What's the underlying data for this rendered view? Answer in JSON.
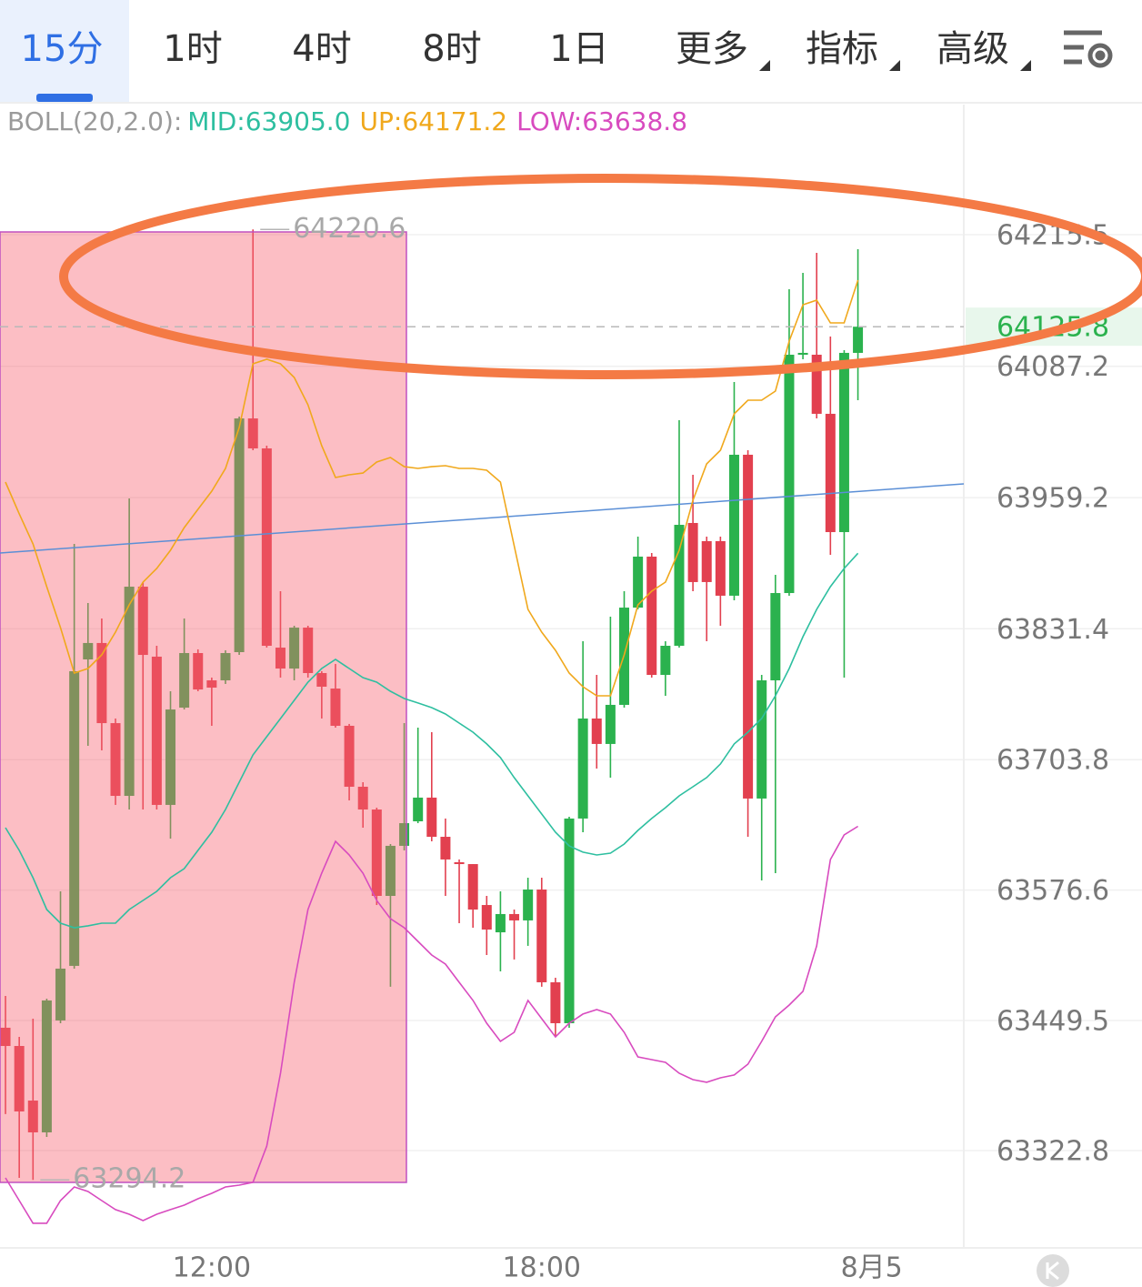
{
  "toolbar": {
    "tabs": [
      {
        "label": "15分"
      },
      {
        "label": "1时"
      },
      {
        "label": "4时"
      },
      {
        "label": "8时"
      },
      {
        "label": "1日"
      },
      {
        "label": "更多",
        "dropdown": true
      },
      {
        "label": "指标",
        "dropdown": true
      },
      {
        "label": "高级",
        "dropdown": true
      }
    ],
    "active": 0
  },
  "chart_data": {
    "type": "candlestick",
    "indicator_label": "BOLL(20,2.0):",
    "x": [
      0,
      1,
      2,
      3,
      4,
      5,
      6,
      7,
      8,
      9,
      10,
      11,
      12,
      13,
      14,
      15,
      16,
      17,
      18,
      19,
      20,
      21,
      22,
      23,
      24,
      25,
      26,
      27,
      28,
      29,
      30,
      31,
      32,
      33,
      34,
      35,
      36,
      37,
      38,
      39,
      40,
      41,
      42,
      43,
      44,
      45,
      46,
      47,
      48,
      49,
      50,
      51,
      52,
      53,
      54,
      55,
      56,
      57,
      58,
      59,
      60,
      61,
      62
    ],
    "open": [
      63442.5,
      63424.7,
      63371.5,
      63340.5,
      63449.6,
      63502.8,
      63801.5,
      63817.5,
      63739.4,
      63668.5,
      63872.4,
      63804.2,
      63659.7,
      63754.5,
      63807.7,
      63781.1,
      63781.1,
      63808.6,
      64036.4,
      64007.2,
      63813.0,
      63792.6,
      63832.5,
      63788.2,
      63773.1,
      63736.8,
      63677.4,
      63655.2,
      63571.0,
      63619.8,
      63643.7,
      63666.8,
      63628.6,
      63603.8,
      63602.0,
      63562.1,
      63535.5,
      63553.3,
      63547.1,
      63577.2,
      63486.8,
      63446.9,
      63646.4,
      63743.9,
      63719.1,
      63757.2,
      63852.0,
      63901.7,
      63786.4,
      63814.8,
      63934.5,
      63916.8,
      63916.8,
      63863.6,
      64001.0,
      63665.9,
      63781.1,
      63866.2,
      64098.5,
      64098.5,
      64040.9,
      63925.6,
      64100.3
    ],
    "high": [
      63473.5,
      63433.6,
      63451.3,
      63470.8,
      63575.4,
      63914.1,
      63856.5,
      63841.4,
      63743.9,
      63958.4,
      63876.9,
      63814.8,
      63770.5,
      63841.4,
      63811.3,
      63783.8,
      63810.4,
      64038.2,
      64220.6,
      64009.8,
      63868.0,
      63834.3,
      63834.3,
      63790.0,
      63797.1,
      63738.6,
      63681.8,
      63657.0,
      63621.5,
      63739.4,
      63735.0,
      63730.6,
      63646.4,
      63606.5,
      63602.0,
      63571.0,
      63575.4,
      63557.7,
      63588.7,
      63588.7,
      63491.2,
      63648.1,
      63819.2,
      63786.4,
      63843.2,
      63868.0,
      63921.2,
      63905.2,
      63819.2,
      64034.7,
      63981.5,
      63921.2,
      63921.2,
      64071.9,
      64005.4,
      63786.4,
      63883.9,
      64162.3,
      64178.3,
      64197.8,
      64116.2,
      64102.9,
      64201.3
    ],
    "low": [
      63358.3,
      63296.2,
      63294.2,
      63336.1,
      63446.9,
      63500.1,
      63717.3,
      63712.9,
      63659.7,
      63655.2,
      63655.2,
      63655.2,
      63626.9,
      63752.7,
      63770.5,
      63736.8,
      63777.6,
      63805.9,
      64005.4,
      63813.0,
      63783.8,
      63781.1,
      63783.8,
      63743.9,
      63735.0,
      63664.1,
      63637.5,
      63562.1,
      63482.4,
      63615.3,
      63641.9,
      63624.2,
      63571.0,
      63544.4,
      63540.0,
      63513.4,
      63497.4,
      63509.0,
      63522.3,
      63482.4,
      63433.6,
      63442.5,
      63633.1,
      63695.1,
      63686.3,
      63754.5,
      63850.3,
      63783.8,
      63766.0,
      63813.0,
      63868.0,
      63819.2,
      63834.3,
      63859.1,
      63628.6,
      63586.1,
      63593.2,
      63863.6,
      64094.1,
      64036.4,
      63903.5,
      63783.8,
      64054.2
    ],
    "close": [
      63424.7,
      63360.9,
      63340.5,
      63469.1,
      63500.1,
      63790.0,
      63817.5,
      63739.4,
      63668.5,
      63872.4,
      63805.9,
      63659.7,
      63752.7,
      63807.7,
      63772.2,
      63774.0,
      63807.7,
      64036.4,
      64007.2,
      63814.8,
      63792.6,
      63832.5,
      63788.2,
      63774.9,
      63736.8,
      63677.4,
      63655.2,
      63571.0,
      63619.8,
      63641.9,
      63666.8,
      63628.6,
      63606.5,
      63602.0,
      63557.7,
      63538.2,
      63553.3,
      63547.1,
      63577.2,
      63486.8,
      63446.9,
      63646.4,
      63743.9,
      63719.1,
      63757.2,
      63852.0,
      63901.7,
      63786.4,
      63814.8,
      63932.7,
      63876.9,
      63876.9,
      63863.6,
      64001.0,
      63665.9,
      63781.1,
      63866.2,
      64098.5,
      64100.3,
      64040.9,
      63925.6,
      64100.3,
      64125.8
    ],
    "up_color": "#2bb24e",
    "down_color": "#e2404f",
    "series": [
      {
        "name": "MID:63905.0",
        "color": "#2ebfa0",
        "values": [
          63637.5,
          63615.3,
          63588.7,
          63557.7,
          63544.4,
          63540.0,
          63541.8,
          63544.4,
          63544.4,
          63557.7,
          63566.6,
          63575.4,
          63588.7,
          63597.6,
          63615.3,
          63633.1,
          63655.2,
          63681.8,
          63708.4,
          63726.2,
          63743.9,
          63761.6,
          63779.3,
          63792.6,
          63801.5,
          63792.6,
          63783.8,
          63779.3,
          63770.5,
          63763.4,
          63759.0,
          63754.5,
          63748.3,
          63739.4,
          63730.6,
          63719.1,
          63705.8,
          63686.3,
          63668.5,
          63650.8,
          63633.1,
          63619.8,
          63613.6,
          63610.9,
          63612.7,
          63621.5,
          63634.8,
          63646.4,
          63657.0,
          63668.5,
          63677.4,
          63686.3,
          63699.6,
          63719.1,
          63730.6,
          63743.9,
          63766.0,
          63792.6,
          63823.7,
          63850.3,
          63872.4,
          63890.2,
          63905.0
        ]
      },
      {
        "name": "UP:64171.2",
        "color": "#f0a81c",
        "values": [
          63974.4,
          63943.3,
          63914.1,
          63872.4,
          63832.5,
          63788.2,
          63792.6,
          63805.9,
          63828.1,
          63854.7,
          63876.9,
          63890.2,
          63907.9,
          63930.0,
          63947.8,
          63965.5,
          63987.7,
          64027.6,
          64089.6,
          64094.1,
          64089.6,
          64076.3,
          64049.7,
          64009.8,
          63978.8,
          63981.5,
          63983.2,
          63993.9,
          63998.3,
          63989.4,
          63987.7,
          63989.4,
          63990.3,
          63987.7,
          63987.7,
          63985.9,
          63974.4,
          63912.3,
          63850.3,
          63828.1,
          63810.4,
          63788.2,
          63774.9,
          63766.0,
          63766.0,
          63805.9,
          63854.7,
          63868.0,
          63876.9,
          63907.9,
          63956.6,
          63992.1,
          64005.4,
          64040.9,
          64054.2,
          64054.2,
          64063.0,
          64111.8,
          64147.2,
          64151.7,
          64129.5,
          64129.5,
          64171.2
        ]
      },
      {
        "name": "LOW:63638.8",
        "color": "#d84bbf",
        "values": [
          63296.2,
          63274.0,
          63251.9,
          63251.9,
          63274.0,
          63287.3,
          63282.9,
          63274.0,
          63265.2,
          63260.7,
          63254.5,
          63260.7,
          63265.2,
          63269.6,
          63275.8,
          63281.1,
          63287.3,
          63289.1,
          63291.8,
          63327.2,
          63398.1,
          63486.8,
          63557.7,
          63593.2,
          63624.2,
          63610.9,
          63593.2,
          63566.6,
          63548.8,
          63540.0,
          63526.7,
          63513.4,
          63504.5,
          63486.8,
          63469.1,
          63446.9,
          63429.2,
          63438.0,
          63469.1,
          63451.3,
          63433.6,
          63446.9,
          63455.8,
          63460.2,
          63455.8,
          63438.0,
          63414.1,
          63411.4,
          63408.8,
          63398.1,
          63391.9,
          63389.3,
          63393.7,
          63396.4,
          63407.0,
          63429.2,
          63453.1,
          63464.6,
          63477.9,
          63522.3,
          63606.5,
          63630.4,
          63638.8
        ]
      }
    ],
    "xlim": [
      -0.4,
      69.7
    ],
    "xticks": [
      {
        "value": 15,
        "label": "12:00"
      },
      {
        "value": 39,
        "label": "18:00"
      },
      {
        "value": 63,
        "label": "8月5"
      }
    ],
    "ylim": [
      63227.9,
      64342.3
    ],
    "yticks": [
      64215.5,
      64087.2,
      63959.2,
      63831.4,
      63703.8,
      63576.6,
      63449.5,
      63322.8
    ],
    "grid": true,
    "max_marker": 64220.6,
    "min_marker": 63294.2,
    "last_price": 64125.8
  }
}
